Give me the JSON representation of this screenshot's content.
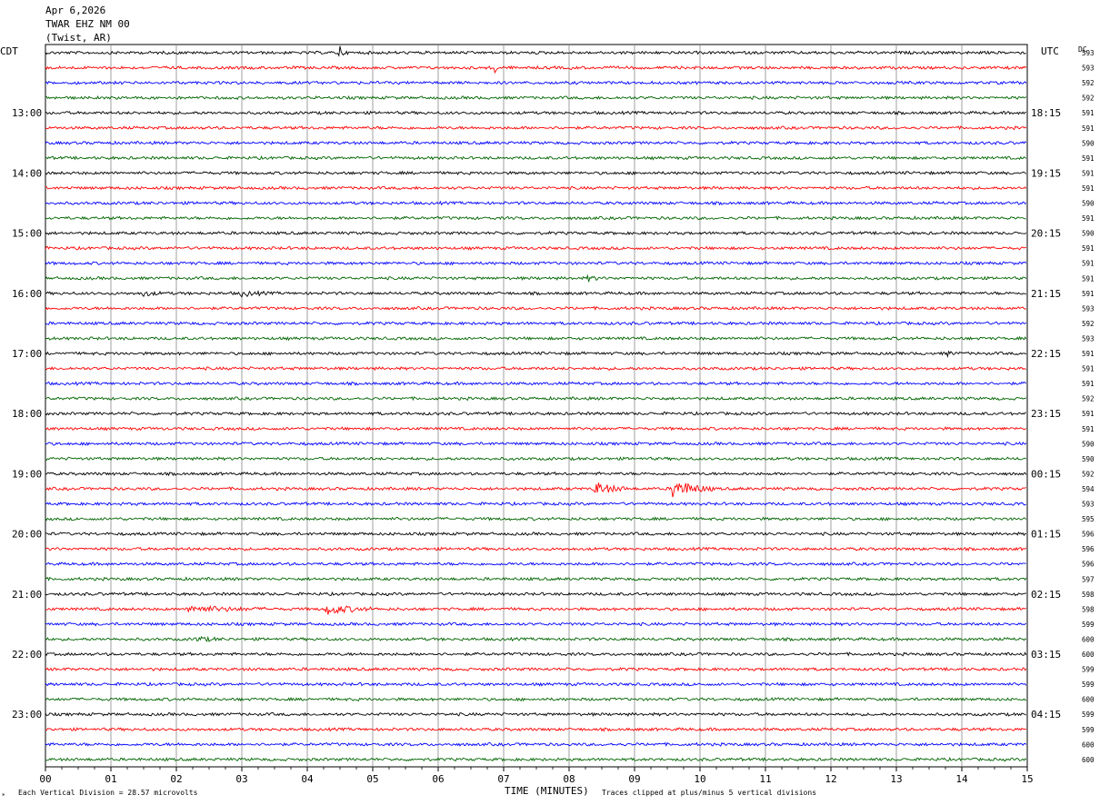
{
  "header": {
    "date": "Apr 6,2026",
    "station": "TWAR EHZ NM 00",
    "location": "(Twist, AR)"
  },
  "left_tz": "CDT",
  "right_tz": "UTC",
  "dc_label": "DC",
  "footer": {
    "scale_note": "Each Vertical Division =   28.57 microvolts",
    "xlabel": "TIME (MINUTES)",
    "clip_note": "Traces clipped at plus/minus 5 vertical divisions"
  },
  "chart_data": {
    "type": "line",
    "title": "TWAR EHZ NM 00",
    "xlabel": "TIME (MINUTES)",
    "x_ticks": [
      "00",
      "01",
      "02",
      "03",
      "04",
      "05",
      "06",
      "07",
      "08",
      "09",
      "10",
      "11",
      "12",
      "13",
      "14",
      "15"
    ],
    "xlim": [
      0,
      15
    ],
    "grid": true,
    "trace_count": 48,
    "trace_colors": [
      "#000000",
      "#ff0000",
      "#0000ff",
      "#006400"
    ],
    "left_time_labels": [
      {
        "trace": 4,
        "label": "13:00"
      },
      {
        "trace": 8,
        "label": "14:00"
      },
      {
        "trace": 12,
        "label": "15:00"
      },
      {
        "trace": 16,
        "label": "16:00"
      },
      {
        "trace": 20,
        "label": "17:00"
      },
      {
        "trace": 24,
        "label": "18:00"
      },
      {
        "trace": 28,
        "label": "19:00"
      },
      {
        "trace": 32,
        "label": "20:00"
      },
      {
        "trace": 36,
        "label": "21:00"
      },
      {
        "trace": 40,
        "label": "22:00"
      },
      {
        "trace": 44,
        "label": "23:00"
      }
    ],
    "right_time_labels": [
      {
        "trace": 4,
        "label": "18:15"
      },
      {
        "trace": 8,
        "label": "19:15"
      },
      {
        "trace": 12,
        "label": "20:15"
      },
      {
        "trace": 16,
        "label": "21:15"
      },
      {
        "trace": 20,
        "label": "22:15"
      },
      {
        "trace": 24,
        "label": "23:15"
      },
      {
        "trace": 28,
        "label": "00:15"
      },
      {
        "trace": 32,
        "label": "01:15"
      },
      {
        "trace": 36,
        "label": "02:15"
      },
      {
        "trace": 40,
        "label": "03:15"
      },
      {
        "trace": 44,
        "label": "04:15"
      }
    ],
    "dc_offsets": [
      "593",
      "593",
      "592",
      "592",
      "591",
      "591",
      "590",
      "591",
      "591",
      "591",
      "590",
      "591",
      "590",
      "591",
      "591",
      "591",
      "591",
      "593",
      "592",
      "593",
      "591",
      "591",
      "591",
      "592",
      "591",
      "591",
      "590",
      "590",
      "592",
      "594",
      "593",
      "595",
      "596",
      "596",
      "596",
      "597",
      "598",
      "598",
      "599",
      "600",
      "600",
      "599",
      "599",
      "600",
      "599",
      "599",
      "600",
      "600"
    ],
    "events": [
      {
        "trace": 0,
        "minute": 4.5,
        "amplitude": 5,
        "duration_min": 0.05
      },
      {
        "trace": 1,
        "minute": 6.85,
        "amplitude": 5,
        "duration_min": 0.05
      },
      {
        "trace": 1,
        "minute": 8.05,
        "amplitude": 1.5,
        "duration_min": 0.05
      },
      {
        "trace": 16,
        "minute": 1.5,
        "amplitude": 1.2,
        "duration_min": 0.3
      },
      {
        "trace": 16,
        "minute": 3.0,
        "amplitude": 1.4,
        "duration_min": 0.4
      },
      {
        "trace": 15,
        "minute": 8.3,
        "amplitude": 1.2,
        "duration_min": 0.2
      },
      {
        "trace": 20,
        "minute": 13.8,
        "amplitude": 1.0,
        "duration_min": 0.1
      },
      {
        "trace": 29,
        "minute": 8.4,
        "amplitude": 3.5,
        "duration_min": 0.5
      },
      {
        "trace": 29,
        "minute": 9.6,
        "amplitude": 5,
        "duration_min": 0.6
      },
      {
        "trace": 37,
        "minute": 2.2,
        "amplitude": 1.6,
        "duration_min": 1.2
      },
      {
        "trace": 37,
        "minute": 4.3,
        "amplitude": 2.6,
        "duration_min": 0.7
      },
      {
        "trace": 39,
        "minute": 2.3,
        "amplitude": 1.2,
        "duration_min": 0.4
      }
    ]
  }
}
